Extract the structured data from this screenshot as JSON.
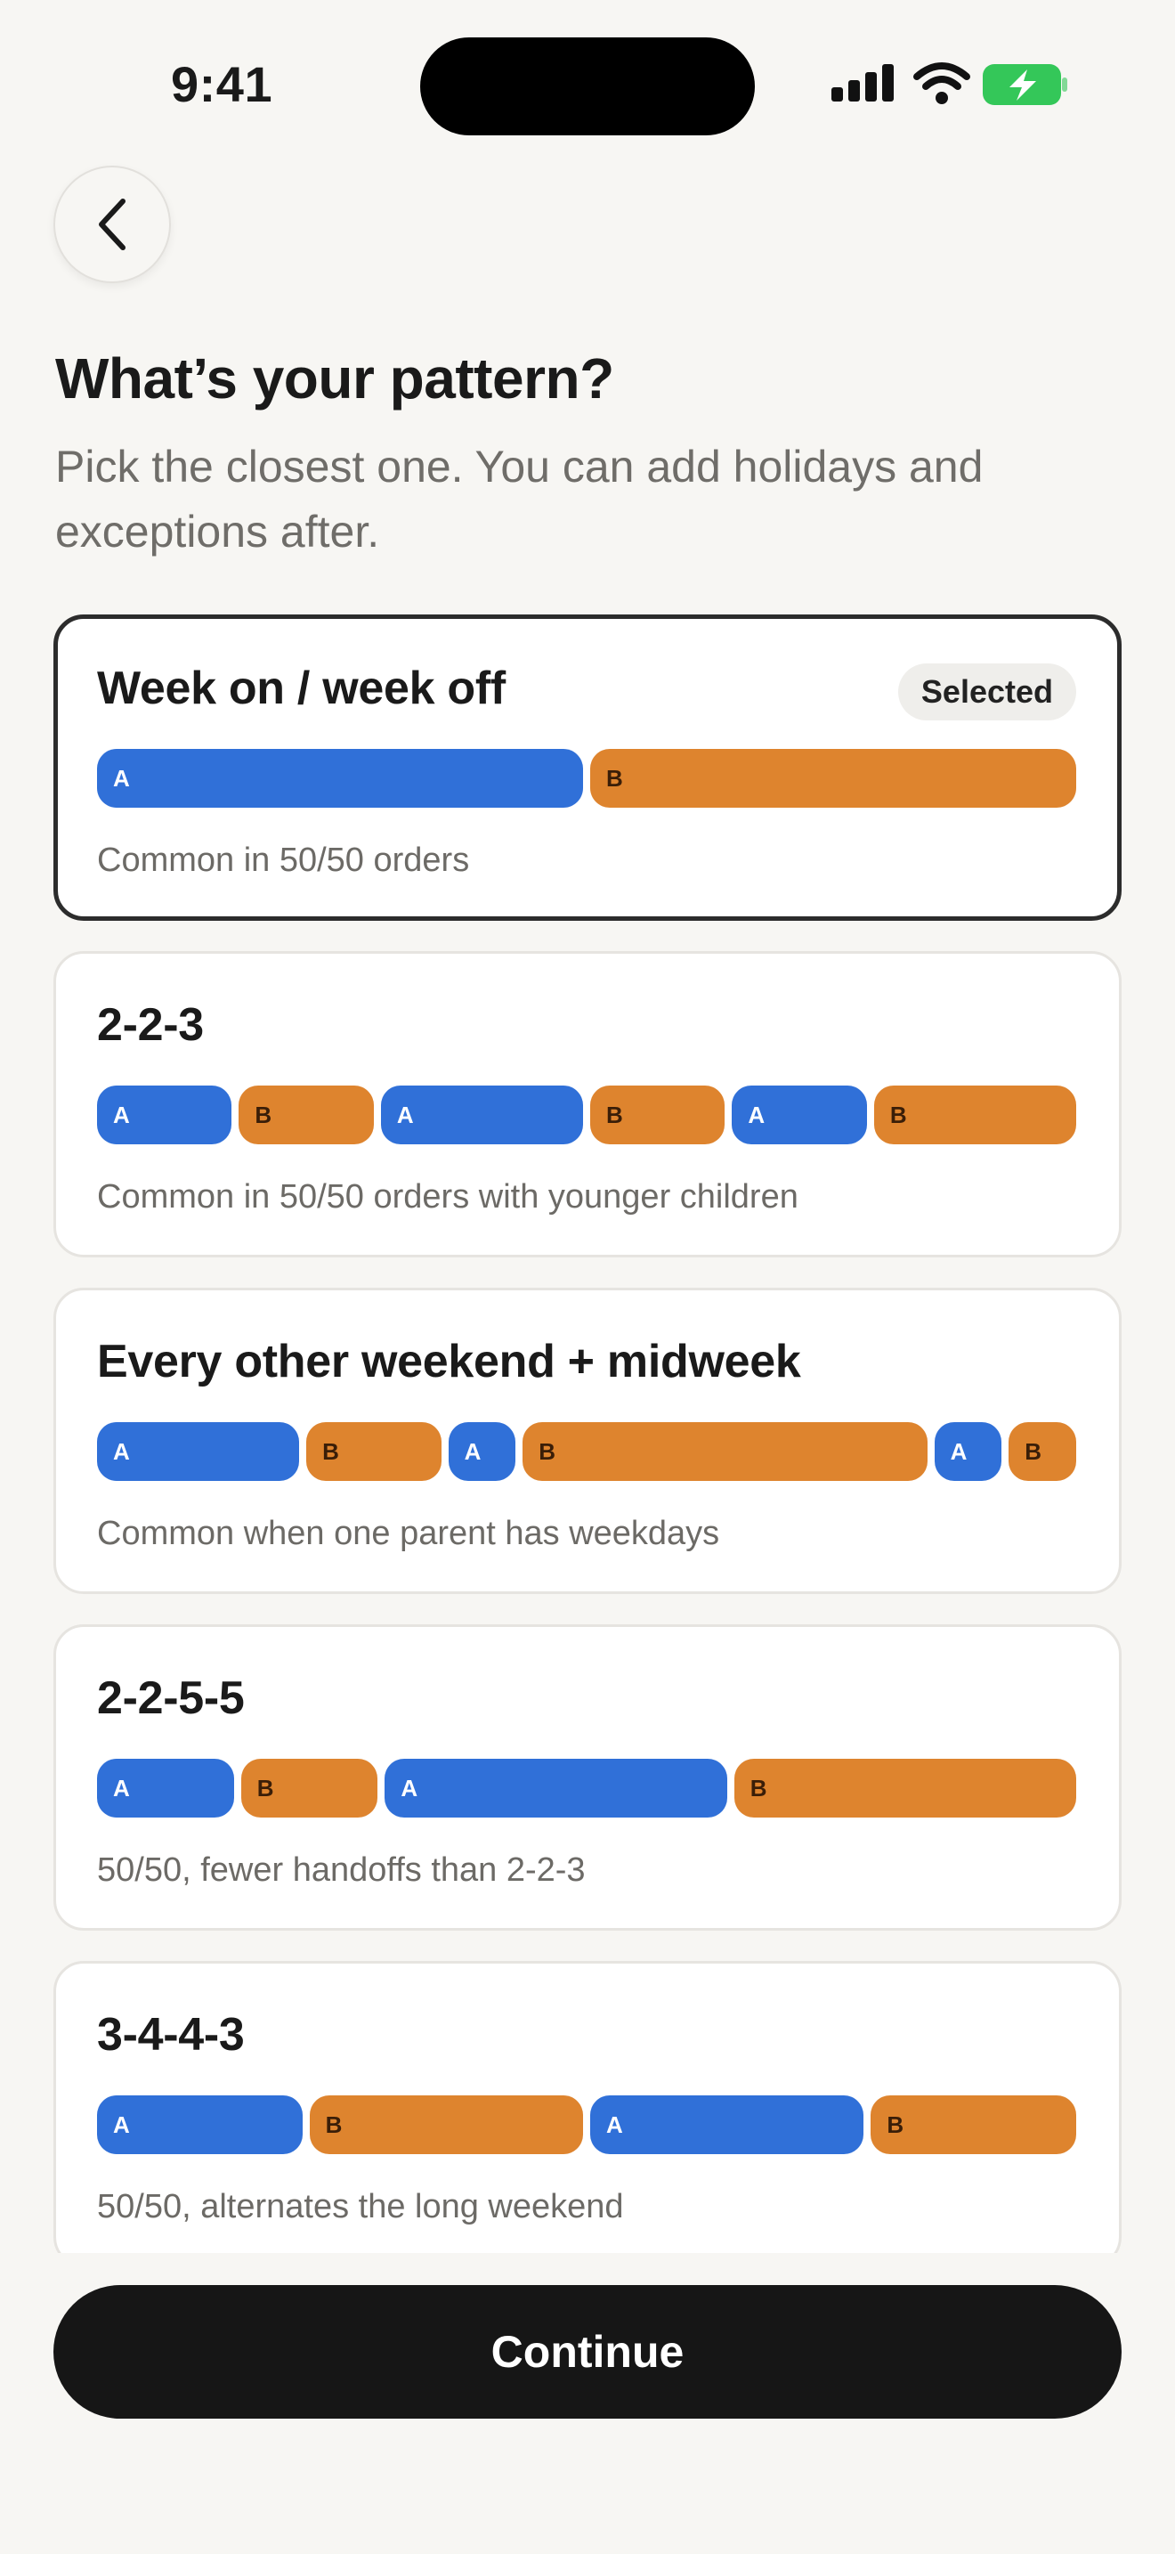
{
  "status_bar": {
    "time": "9:41",
    "icons": [
      "signal-icon",
      "wifi-icon",
      "battery-charging-icon"
    ],
    "battery_color": "#34c759"
  },
  "header": {
    "back_icon": "chevron-left-icon",
    "title": "What’s your pattern?",
    "subtitle": "Pick the closest one. You can add holidays and exceptions after."
  },
  "colors": {
    "parent_a": "#3070d8",
    "parent_b": "#de842e",
    "selected_border": "#2c2c2c"
  },
  "patterns": [
    {
      "title": "Week on / week off",
      "description": "Common in 50/50 orders",
      "selected": true,
      "badge": "Selected",
      "segments": [
        {
          "parent": "A",
          "days": 7
        },
        {
          "parent": "B",
          "days": 7
        }
      ]
    },
    {
      "title": "2-2-3",
      "description": "Common in 50/50 orders with younger children",
      "selected": false,
      "segments": [
        {
          "parent": "A",
          "days": 2
        },
        {
          "parent": "B",
          "days": 2
        },
        {
          "parent": "A",
          "days": 3
        },
        {
          "parent": "B",
          "days": 2
        },
        {
          "parent": "A",
          "days": 2
        },
        {
          "parent": "B",
          "days": 3
        }
      ]
    },
    {
      "title": "Every other weekend + midweek",
      "description": "Common when one parent has weekdays",
      "selected": false,
      "segments": [
        {
          "parent": "A",
          "days": 3
        },
        {
          "parent": "B",
          "days": 2
        },
        {
          "parent": "A",
          "days": 1
        },
        {
          "parent": "B",
          "days": 6
        },
        {
          "parent": "A",
          "days": 1
        },
        {
          "parent": "B",
          "days": 1
        }
      ]
    },
    {
      "title": "2-2-5-5",
      "description": "50/50, fewer handoffs than 2-2-3",
      "selected": false,
      "segments": [
        {
          "parent": "A",
          "days": 2
        },
        {
          "parent": "B",
          "days": 2
        },
        {
          "parent": "A",
          "days": 5
        },
        {
          "parent": "B",
          "days": 5
        }
      ]
    },
    {
      "title": "3-4-4-3",
      "description": "50/50, alternates the long weekend",
      "selected": false,
      "segments": [
        {
          "parent": "A",
          "days": 3
        },
        {
          "parent": "B",
          "days": 4
        },
        {
          "parent": "A",
          "days": 4
        },
        {
          "parent": "B",
          "days": 3
        }
      ]
    }
  ],
  "footer": {
    "continue_label": "Continue"
  }
}
